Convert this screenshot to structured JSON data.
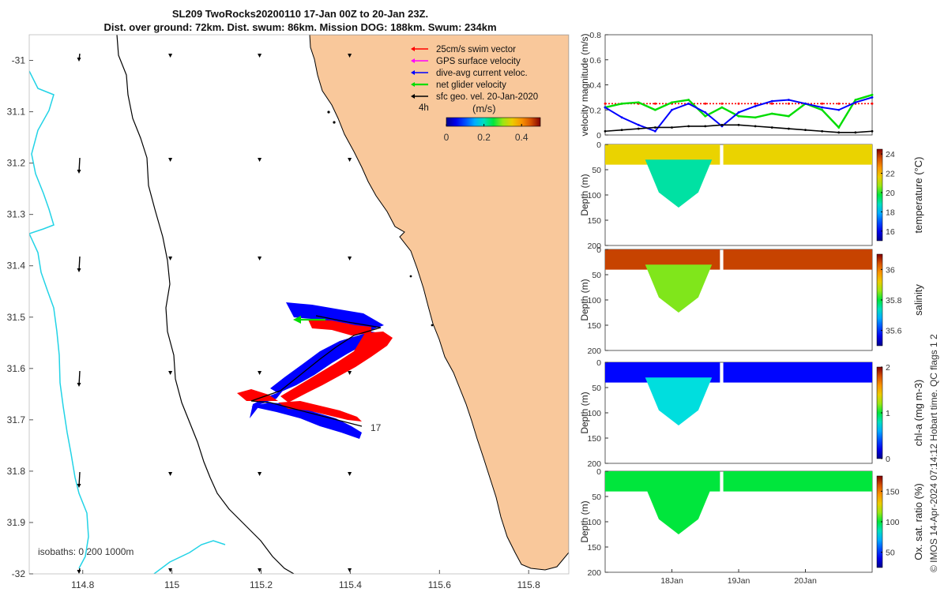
{
  "title": {
    "line1": "SL209 TwoRocks20200110 17-Jan 00Z to 20-Jan 23Z.",
    "line2": "Dist. over ground: 72km. Dist. swum: 86km. Mission DOG: 188km. Swum: 234km"
  },
  "map": {
    "xticks": [
      "114.8",
      "115",
      "115.2",
      "115.4",
      "115.6",
      "115.8"
    ],
    "xtick_values": [
      114.8,
      115.0,
      115.2,
      115.4,
      115.6,
      115.8
    ],
    "yticks": [
      "-31",
      "31.1",
      "31.2",
      "31.3",
      "31.4",
      "31.5",
      "31.6",
      "31.7",
      "31.8",
      "31.9",
      "-32"
    ],
    "ytick_values": [
      -31.0,
      -31.1,
      -31.2,
      -31.3,
      -31.4,
      -31.5,
      -31.6,
      -31.7,
      -31.8,
      -31.9,
      -32.0
    ],
    "xlim": [
      114.68,
      115.89
    ],
    "ylim": [
      -32.0,
      -30.95
    ],
    "legend": [
      {
        "label": "25cm/s swim vector",
        "color": "#ff0000"
      },
      {
        "label": "GPS surface velocity",
        "color": "#ff00ff"
      },
      {
        "label": "dive-avg current veloc.",
        "color": "#0000ff"
      },
      {
        "label": "net glider velocity",
        "color": "#00dd00"
      },
      {
        "label": "sfc geo. vel. 20-Jan-2020",
        "color": "#000000"
      }
    ],
    "time_scale_label": "4h",
    "colorbar": {
      "label": "(m/s)",
      "ticks": [
        "0",
        "0.2",
        "0.4"
      ],
      "tick_values": [
        0,
        0.2,
        0.4
      ],
      "range": [
        0,
        0.5
      ]
    },
    "start_label": "17",
    "isobaths_label": "isobaths: 0   200  1000m",
    "colors": {
      "land": "#f9c89b",
      "isobath_200": "#000000",
      "isobath_1000": "#22d3e6",
      "track": "#000000"
    }
  },
  "chart_data": [
    {
      "type": "line",
      "title": "",
      "ylabel": "velocity magnitude (m/s)",
      "ylim": [
        0,
        0.8
      ],
      "yticks": [
        "0",
        "0.2",
        "0.4",
        "0.6",
        "0.8"
      ],
      "ytick_values": [
        0,
        0.2,
        0.4,
        0.6,
        0.8
      ],
      "x": [
        17.0,
        17.25,
        17.5,
        17.75,
        18.0,
        18.25,
        18.5,
        18.75,
        19.0,
        19.25,
        19.5,
        19.75,
        20.0,
        20.25,
        20.5,
        20.75,
        21.0
      ],
      "series": [
        {
          "color": "#ff0000",
          "values": [
            0.25,
            0.25,
            0.25,
            0.25,
            0.25,
            0.25,
            0.25,
            0.25,
            0.25,
            0.25,
            0.25,
            0.25,
            0.25,
            0.25,
            0.25,
            0.25,
            0.25
          ]
        },
        {
          "color": "#00dd00",
          "values": [
            0.22,
            0.25,
            0.26,
            0.2,
            0.26,
            0.28,
            0.15,
            0.22,
            0.15,
            0.14,
            0.17,
            0.15,
            0.25,
            0.2,
            0.06,
            0.28,
            0.32
          ]
        },
        {
          "color": "#0000ff",
          "values": [
            0.22,
            0.14,
            0.08,
            0.03,
            0.2,
            0.25,
            0.18,
            0.07,
            0.18,
            0.23,
            0.27,
            0.28,
            0.25,
            0.22,
            0.2,
            0.26,
            0.3
          ]
        },
        {
          "color": "#000000",
          "values": [
            0.03,
            0.04,
            0.05,
            0.06,
            0.06,
            0.07,
            0.07,
            0.08,
            0.08,
            0.07,
            0.06,
            0.05,
            0.04,
            0.03,
            0.02,
            0.02,
            0.03
          ]
        }
      ]
    },
    {
      "type": "heatmap",
      "ylabel": "Depth (m)",
      "colorbar_label": "temperature (°C)",
      "colorbar_ticks": [
        "16",
        "18",
        "20",
        "22",
        "24"
      ],
      "colorbar_tick_values": [
        16,
        18,
        20,
        22,
        24
      ],
      "clim": [
        15,
        24.5
      ],
      "ylim": [
        0,
        200
      ],
      "yticks": [
        "0",
        "50",
        "100",
        "150",
        "200"
      ],
      "ytick_values": [
        0,
        50,
        100,
        150,
        200
      ],
      "surface_value": 21.5,
      "deep_value": 19.0
    },
    {
      "type": "heatmap",
      "ylabel": "Depth (m)",
      "colorbar_label": "salinity",
      "colorbar_ticks": [
        "35.6",
        "35.8",
        "36"
      ],
      "colorbar_tick_values": [
        35.6,
        35.8,
        36.0
      ],
      "clim": [
        35.5,
        36.1
      ],
      "ylim": [
        0,
        200
      ],
      "yticks": [
        "0",
        "50",
        "100",
        "150",
        "200"
      ],
      "ytick_values": [
        0,
        50,
        100,
        150,
        200
      ],
      "surface_value": 36.05,
      "deep_value": 35.85
    },
    {
      "type": "heatmap",
      "ylabel": "Depth (m)",
      "colorbar_label": "chl-a (mg m-3)",
      "colorbar_ticks": [
        "0",
        "1",
        "2"
      ],
      "colorbar_tick_values": [
        0,
        1,
        2
      ],
      "clim": [
        0,
        2
      ],
      "ylim": [
        0,
        200
      ],
      "yticks": [
        "0",
        "50",
        "100",
        "150",
        "200"
      ],
      "ytick_values": [
        0,
        50,
        100,
        150,
        200
      ],
      "surface_value": 0.25,
      "deep_value": 0.75
    },
    {
      "type": "heatmap",
      "ylabel": "Depth (m)",
      "colorbar_label": "Ox. sat. ratio (%)",
      "colorbar_ticks": [
        "50",
        "100",
        "150"
      ],
      "colorbar_tick_values": [
        50,
        100,
        150
      ],
      "clim": [
        25,
        175
      ],
      "ylim": [
        0,
        200
      ],
      "yticks": [
        "0",
        "50",
        "100",
        "150",
        "200"
      ],
      "ytick_values": [
        0,
        50,
        100,
        150,
        200
      ],
      "surface_value": 100,
      "deep_value": 100,
      "xticks": [
        "18Jan",
        "19Jan",
        "20Jan"
      ],
      "xtick_values": [
        18,
        19,
        20
      ]
    }
  ],
  "footer": "© IMOS 14-Apr-2024 07:14:12 Hobart time. QC flags 1  2"
}
